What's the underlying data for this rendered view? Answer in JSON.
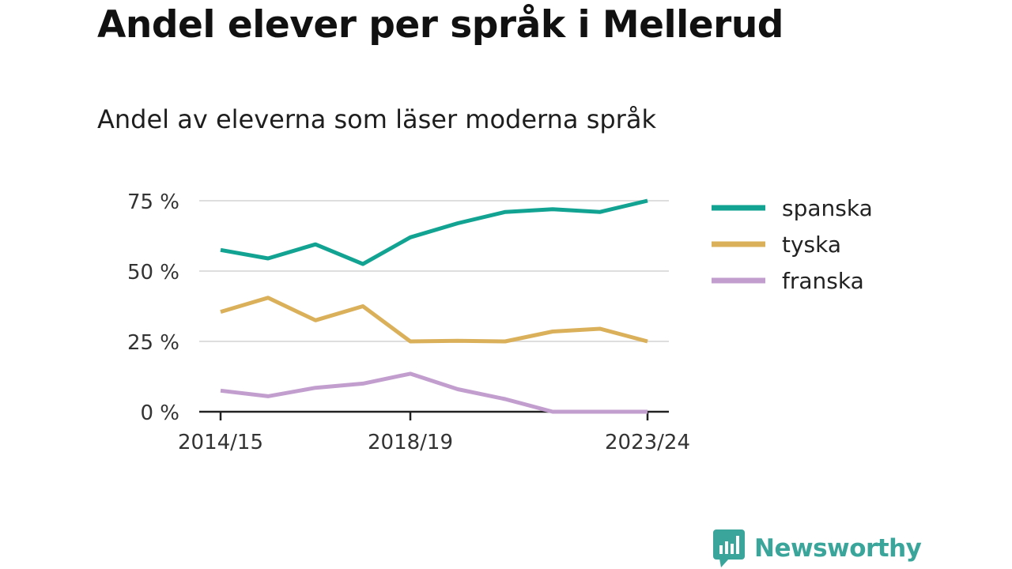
{
  "title": "Andel elever per språk i Mellerud",
  "subtitle": "Andel av eleverna som läser moderna språk",
  "brand": {
    "name": "Newsworthy",
    "color": "#3aa59a",
    "icon": "bar-chart-speech-bubble-icon"
  },
  "chart_data": {
    "type": "line",
    "x": [
      "2014/15",
      "2015/16",
      "2016/17",
      "2017/18",
      "2018/19",
      "2019/20",
      "2020/21",
      "2021/22",
      "2022/23",
      "2023/24"
    ],
    "x_tick_labels": [
      "2014/15",
      "2018/19",
      "2023/24"
    ],
    "ylim": [
      0,
      75
    ],
    "y_ticks": [
      0,
      25,
      50,
      75
    ],
    "y_tick_labels": [
      "0 %",
      "25 %",
      "50 %",
      "75 %"
    ],
    "grid": true,
    "legend_position": "right",
    "series": [
      {
        "name": "spanska",
        "color": "#12a393",
        "values": [
          57.5,
          54.5,
          59.5,
          52.5,
          62,
          67,
          71,
          72,
          71,
          75
        ]
      },
      {
        "name": "tyska",
        "color": "#dbb05a",
        "values": [
          35.5,
          40.5,
          32.5,
          37.5,
          25,
          25.2,
          25,
          28.5,
          29.5,
          25
        ]
      },
      {
        "name": "franska",
        "color": "#c29ecf",
        "values": [
          7.5,
          5.5,
          8.5,
          10,
          13.5,
          8,
          4.5,
          0,
          0,
          0
        ]
      }
    ]
  }
}
